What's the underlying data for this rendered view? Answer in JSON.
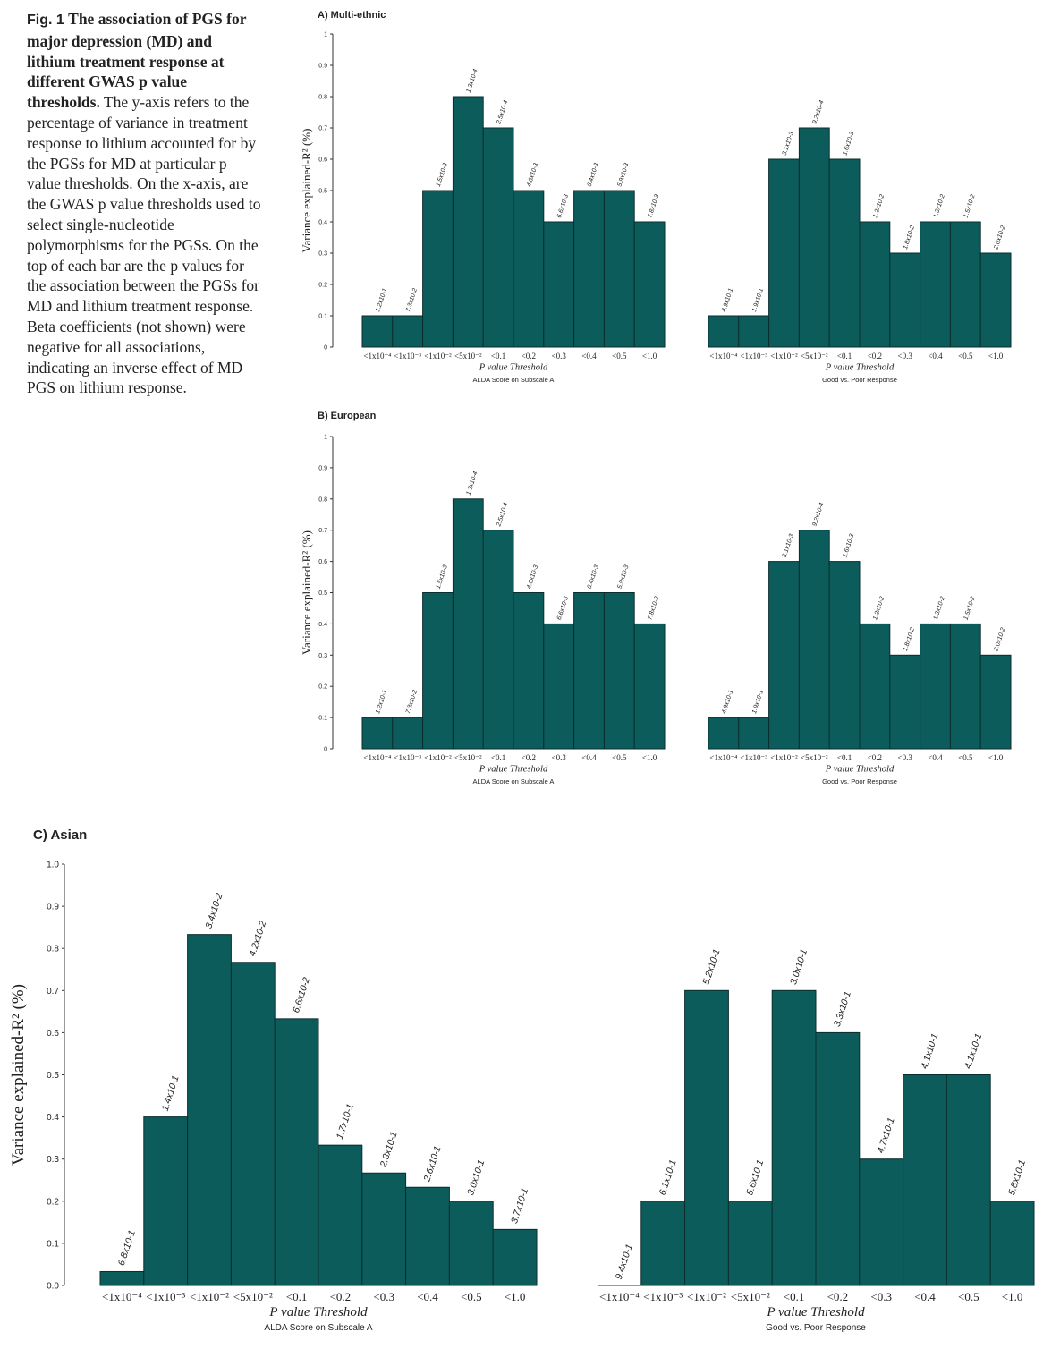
{
  "caption": {
    "fig_label": "Fig. 1",
    "lead": "The association of PGS for major depression (MD) and lithium treatment response at different GWAS p value thresholds.",
    "body": "The y-axis refers to the percentage of variance in treatment response to lithium accounted for by the PGSs for MD at particular p value thresholds. On the x-axis, are the GWAS p value thresholds used to select single-nucleotide polymorphisms for the PGSs. On the top of each bar are the p values for the association between the PGSs for MD and lithium treatment response. Beta coefficients (not shown) were negative for all associations, indicating an inverse effect of MD PGS on lithium response."
  },
  "colors": {
    "bar": "#0d5c5c",
    "bar_stroke": "#0a2e2e",
    "axis": "#333333",
    "text": "#222222"
  },
  "chart_data": [
    {
      "panel": "A) Multi-ethnic",
      "type": "bar",
      "ylabel": "Variance explained-R² (%)",
      "xlabel": "P value Threshold",
      "ylim": [
        0,
        1
      ],
      "yticks": [
        "0",
        "0.1",
        "0.2",
        "0.3",
        "0.4",
        "0.5",
        "0.6",
        "0.7",
        "0.8",
        "0.9",
        "1"
      ],
      "groups": [
        {
          "subtitle": "ALDA Score on Subscale A",
          "categories": [
            "<1x10⁻⁴",
            "<1x10⁻³",
            "<1x10⁻²",
            "<5x10⁻²",
            "<0.1",
            "<0.2",
            "<0.3",
            "<0.4",
            "<0.5",
            "<1.0"
          ],
          "values": [
            0.1,
            0.1,
            0.5,
            0.8,
            0.7,
            0.5,
            0.4,
            0.5,
            0.5,
            0.4
          ],
          "pvalues": [
            "1.2x10-1",
            "7.3x10-2",
            "1.5x10-3",
            "1.3x10-4",
            "2.5x10-4",
            "4.6x10-3",
            "6.6x10-3",
            "6.4x10-3",
            "5.9x10-3",
            "7.8x10-3"
          ]
        },
        {
          "subtitle": "Good vs. Poor Response",
          "categories": [
            "<1x10⁻⁴",
            "<1x10⁻³",
            "<1x10⁻²",
            "<5x10⁻²",
            "<0.1",
            "<0.2",
            "<0.3",
            "<0.4",
            "<0.5",
            "<1.0"
          ],
          "values": [
            0.1,
            0.1,
            0.6,
            0.7,
            0.6,
            0.4,
            0.3,
            0.4,
            0.4,
            0.3
          ],
          "pvalues": [
            "4.9x10-1",
            "1.9x10-1",
            "3.1x10-3",
            "9.2x10-4",
            "1.6x10-3",
            "1.2x10-2",
            "1.8x10-2",
            "1.3x10-2",
            "1.5x10-2",
            "2.0x10-2"
          ]
        }
      ]
    },
    {
      "panel": "B) European",
      "type": "bar",
      "ylabel": "Variance explained-R² (%)",
      "xlabel": "P value Threshold",
      "ylim": [
        0,
        1
      ],
      "yticks": [
        "0",
        "0.1",
        "0.2",
        "0.3",
        "0.4",
        "0.5",
        "0.6",
        "0.7",
        "0.8",
        "0.9",
        "1"
      ],
      "groups": [
        {
          "subtitle": "ALDA Score on Subscale A",
          "categories": [
            "<1x10⁻⁴",
            "<1x10⁻³",
            "<1x10⁻²",
            "<5x10⁻²",
            "<0.1",
            "<0.2",
            "<0.3",
            "<0.4",
            "<0.5",
            "<1.0"
          ],
          "values": [
            0.1,
            0.1,
            0.5,
            0.8,
            0.7,
            0.5,
            0.4,
            0.5,
            0.5,
            0.4
          ],
          "pvalues": [
            "1.2x10-1",
            "7.3x10-2",
            "1.5x10-3",
            "1.3x10-4",
            "2.5x10-4",
            "4.6x10-3",
            "6.6x10-3",
            "6.4x10-3",
            "5.9x10-3",
            "7.8x10-3"
          ]
        },
        {
          "subtitle": "Good vs. Poor Response",
          "categories": [
            "<1x10⁻⁴",
            "<1x10⁻³",
            "<1x10⁻²",
            "<5x10⁻²",
            "<0.1",
            "<0.2",
            "<0.3",
            "<0.4",
            "<0.5",
            "<1.0"
          ],
          "values": [
            0.1,
            0.1,
            0.6,
            0.7,
            0.6,
            0.4,
            0.3,
            0.4,
            0.4,
            0.3
          ],
          "pvalues": [
            "4.9x10-1",
            "1.9x10-1",
            "3.1x10-3",
            "9.2x10-4",
            "1.6x10-3",
            "1.2x10-2",
            "1.8x10-2",
            "1.3x10-2",
            "1.5x10-2",
            "2.0x10-2"
          ]
        }
      ]
    },
    {
      "panel": "C) Asian",
      "type": "bar",
      "ylabel": "Variance explained-R² (%)",
      "xlabel": "P value Threshold",
      "ylim": [
        0,
        1
      ],
      "yticks": [
        "0.0",
        "0.1",
        "0.2",
        "0.3",
        "0.4",
        "0.5",
        "0.6",
        "0.7",
        "0.8",
        "0.9",
        "1.0"
      ],
      "groups": [
        {
          "subtitle": "ALDA Score on Subscale A",
          "categories": [
            "<1x10⁻⁴",
            "<1x10⁻³",
            "<1x10⁻²",
            "<5x10⁻²",
            "<0.1",
            "<0.2",
            "<0.3",
            "<0.4",
            "<0.5",
            "<1.0"
          ],
          "values": [
            0.033,
            0.4,
            0.833,
            0.767,
            0.633,
            0.333,
            0.267,
            0.233,
            0.2,
            0.133
          ],
          "pvalues": [
            "6.8x10-1",
            "1.4x10-1",
            "3.4x10-2",
            "4.2x10-2",
            "6.6x10-2",
            "1.7x10-1",
            "2.3x10-1",
            "2.6x10-1",
            "3.0x10-1",
            "3.7x10-1"
          ]
        },
        {
          "subtitle": "Good vs. Poor Response",
          "categories": [
            "<1x10⁻⁴",
            "<1x10⁻³",
            "<1x10⁻²",
            "<5x10⁻²",
            "<0.1",
            "<0.2",
            "<0.3",
            "<0.4",
            "<0.5",
            "<1.0"
          ],
          "values": [
            0.0,
            0.2,
            0.7,
            0.2,
            0.7,
            0.6,
            0.3,
            0.5,
            0.5,
            0.2
          ],
          "pvalues": [
            "9.4x10-1",
            "6.1x10-1",
            "5.2x10-1",
            "5.6x10-1",
            "3.0x10-1",
            "3.3x10-1",
            "4.7x10-1",
            "4.1x10-1",
            "4.1x10-1",
            "5.8x10-1"
          ]
        }
      ]
    }
  ]
}
